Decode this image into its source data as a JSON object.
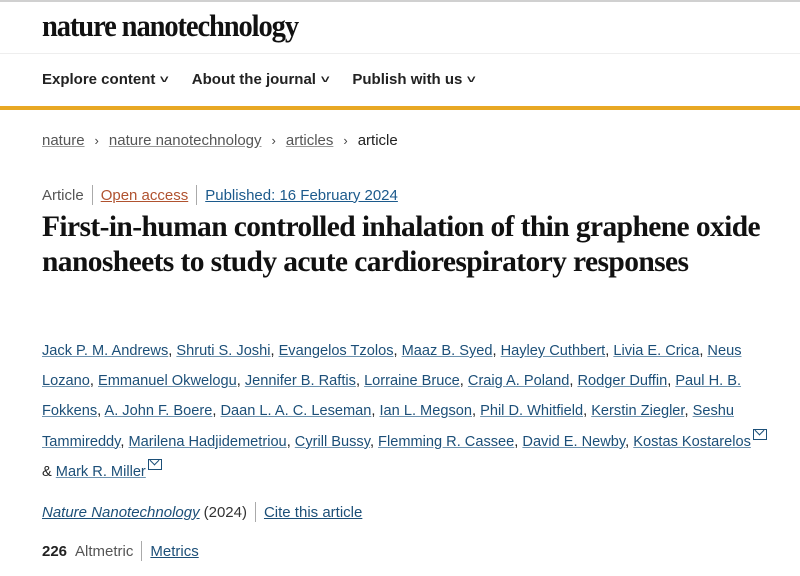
{
  "header": {
    "logo": "nature nanotechnology"
  },
  "nav": [
    {
      "label": "Explore content"
    },
    {
      "label": "About the journal"
    },
    {
      "label": "Publish with us"
    }
  ],
  "nav_chevron": "˅",
  "breadcrumb": {
    "items": [
      "nature",
      "nature nanotechnology",
      "articles"
    ],
    "current": "article",
    "separator": "›"
  },
  "meta": {
    "type": "Article",
    "access": "Open access",
    "published": "Published: 16 February 2024"
  },
  "title": "First-in-human controlled inhalation of thin graphene oxide nanosheets to study acute cardiorespiratory responses",
  "authors": [
    "Jack P. M. Andrews",
    "Shruti S. Joshi",
    "Evangelos Tzolos",
    "Maaz B. Syed",
    "Hayley Cuthbert",
    "Livia E. Crica",
    "Neus Lozano",
    "Emmanuel Okwelogu",
    "Jennifer B. Raftis",
    "Lorraine Bruce",
    "Craig A. Poland",
    "Rodger Duffin",
    "Paul H. B. Fokkens",
    "A. John F. Boere",
    "Daan L. A. C. Leseman",
    "Ian L. Megson",
    "Phil D. Whitfield",
    "Kerstin Ziegler",
    "Seshu Tammireddy",
    "Marilena Hadjidemetriou",
    "Cyrill Bussy",
    "Flemming R. Cassee",
    "David E. Newby",
    "Kostas Kostarelos",
    "Mark R. Miller"
  ],
  "authors_joiner": "&",
  "journal": {
    "name": "Nature Nanotechnology",
    "year": "(2024)",
    "cite": "Cite this article"
  },
  "metrics": {
    "altmetric_score": "226",
    "altmetric_label": "Altmetric",
    "metrics_link": "Metrics"
  },
  "colors": {
    "accent": "#e8a824",
    "link": "#1c4f78",
    "open_access": "#b0522f"
  }
}
